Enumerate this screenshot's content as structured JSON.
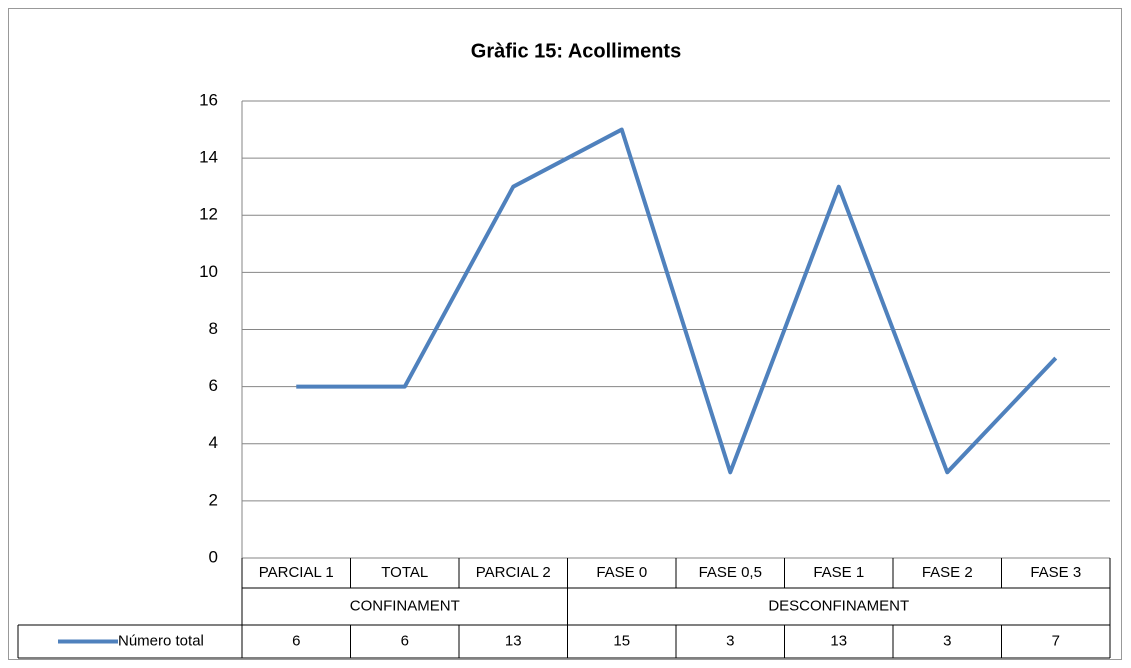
{
  "chart_data": {
    "type": "line",
    "title": "Gràfic 15: Acolliments",
    "categories": [
      "PARCIAL 1",
      "TOTAL",
      "PARCIAL 2",
      "FASE 0",
      "FASE 0,5",
      "FASE 1",
      "FASE 2",
      "FASE 3"
    ],
    "groups": [
      {
        "label": "CONFINAMENT",
        "count": 3
      },
      {
        "label": "DESCONFINAMENT",
        "count": 5
      }
    ],
    "series": [
      {
        "name": "Número total",
        "color": "#4f81bd",
        "values": [
          6,
          6,
          13,
          15,
          3,
          13,
          3,
          7
        ]
      }
    ],
    "ylim": [
      0,
      16
    ],
    "yticks": [
      0,
      2,
      4,
      6,
      8,
      10,
      12,
      14,
      16
    ],
    "grid": true,
    "legend": "table"
  }
}
